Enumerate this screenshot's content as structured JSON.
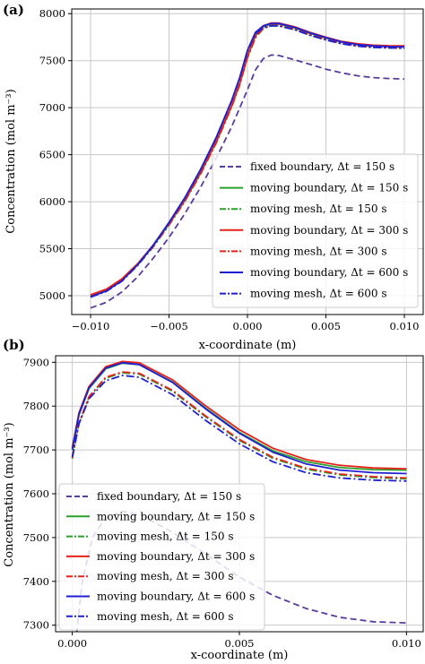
{
  "chart_data": [
    {
      "panel": "(a)",
      "type": "line",
      "xlabel": "x-coordinate (m)",
      "ylabel": "Concentration (mol m⁻³)",
      "xlim": [
        -0.0112,
        0.0112
      ],
      "ylim": [
        4800,
        8050
      ],
      "xticks": [
        -0.01,
        -0.005,
        0.0,
        0.005,
        0.01
      ],
      "xtick_labels": [
        "−0.010",
        "−0.005",
        "0.000",
        "0.005",
        "0.010"
      ],
      "yticks": [
        5000,
        5500,
        6000,
        6500,
        7000,
        7500,
        8000
      ],
      "ytick_labels": [
        "5000",
        "5500",
        "6000",
        "6500",
        "7000",
        "7500",
        "8000"
      ],
      "grid": true,
      "legend": "lower-right",
      "series": [
        {
          "name": "fixed boundary, Δt = 150 s",
          "color": "#5b3c9e",
          "style": "dashed",
          "x": [
            -0.01,
            -0.009,
            -0.008,
            -0.007,
            -0.006,
            -0.005,
            -0.004,
            -0.003,
            -0.002,
            -0.001,
            0.0,
            0.0005,
            0.001,
            0.0015,
            0.002,
            0.003,
            0.004,
            0.005,
            0.006,
            0.007,
            0.008,
            0.009,
            0.01
          ],
          "y": [
            4870,
            4930,
            5040,
            5200,
            5400,
            5620,
            5870,
            6150,
            6460,
            6800,
            7190,
            7400,
            7520,
            7560,
            7555,
            7510,
            7460,
            7410,
            7370,
            7340,
            7320,
            7310,
            7305
          ]
        },
        {
          "name": "moving boundary, Δt = 150 s",
          "color": "#2ca02c",
          "style": "solid",
          "x": [
            -0.01,
            -0.009,
            -0.008,
            -0.007,
            -0.006,
            -0.005,
            -0.004,
            -0.003,
            -0.002,
            -0.001,
            -0.0005,
            0.0,
            0.0005,
            0.001,
            0.0015,
            0.002,
            0.003,
            0.004,
            0.005,
            0.006,
            0.007,
            0.008,
            0.009,
            0.01
          ],
          "y": [
            5000,
            5060,
            5170,
            5330,
            5530,
            5760,
            6010,
            6300,
            6630,
            7020,
            7250,
            7540,
            7760,
            7860,
            7890,
            7890,
            7850,
            7790,
            7740,
            7700,
            7675,
            7662,
            7656,
            7655
          ]
        },
        {
          "name": "moving mesh, Δt = 150 s",
          "color": "#2ca02c",
          "style": "dashdot",
          "x": [
            -0.01,
            -0.009,
            -0.008,
            -0.007,
            -0.006,
            -0.005,
            -0.004,
            -0.003,
            -0.002,
            -0.001,
            -0.0005,
            0.0,
            0.0005,
            0.001,
            0.0015,
            0.002,
            0.003,
            0.004,
            0.005,
            0.006,
            0.007,
            0.008,
            0.009,
            0.01
          ],
          "y": [
            4990,
            5050,
            5160,
            5320,
            5520,
            5750,
            6000,
            6290,
            6620,
            7010,
            7240,
            7530,
            7740,
            7840,
            7870,
            7870,
            7830,
            7770,
            7720,
            7680,
            7655,
            7642,
            7636,
            7633
          ]
        },
        {
          "name": "moving boundary, Δt = 300 s",
          "color": "#e8221b",
          "style": "solid",
          "x": [
            -0.01,
            -0.009,
            -0.008,
            -0.007,
            -0.006,
            -0.005,
            -0.004,
            -0.003,
            -0.002,
            -0.001,
            -0.0005,
            0.0,
            0.0005,
            0.001,
            0.0015,
            0.002,
            0.003,
            0.004,
            0.005,
            0.006,
            0.007,
            0.008,
            0.009,
            0.01
          ],
          "y": [
            5010,
            5070,
            5180,
            5340,
            5540,
            5770,
            6020,
            6310,
            6640,
            7030,
            7260,
            7550,
            7770,
            7870,
            7900,
            7900,
            7860,
            7800,
            7750,
            7705,
            7680,
            7665,
            7659,
            7657
          ]
        },
        {
          "name": "moving mesh, Δt = 300 s",
          "color": "#e8221b",
          "style": "dashdot",
          "x": [
            -0.01,
            -0.009,
            -0.008,
            -0.007,
            -0.006,
            -0.005,
            -0.004,
            -0.003,
            -0.002,
            -0.001,
            -0.0005,
            0.0,
            0.0005,
            0.001,
            0.0015,
            0.002,
            0.003,
            0.004,
            0.005,
            0.006,
            0.007,
            0.008,
            0.009,
            0.01
          ],
          "y": [
            4995,
            5055,
            5165,
            5325,
            5525,
            5755,
            6005,
            6295,
            6625,
            7015,
            7245,
            7535,
            7745,
            7845,
            7875,
            7875,
            7835,
            7775,
            7725,
            7685,
            7660,
            7646,
            7640,
            7637
          ]
        },
        {
          "name": "moving boundary, Δt = 600 s",
          "color": "#1f1fd1",
          "style": "solid",
          "x": [
            -0.01,
            -0.009,
            -0.008,
            -0.007,
            -0.006,
            -0.005,
            -0.004,
            -0.003,
            -0.002,
            -0.001,
            -0.0005,
            0.0,
            0.0005,
            0.001,
            0.0015,
            0.002,
            0.003,
            0.004,
            0.005,
            0.006,
            0.007,
            0.008,
            0.009,
            0.01
          ],
          "y": [
            4990,
            5050,
            5160,
            5330,
            5540,
            5780,
            6040,
            6340,
            6680,
            7080,
            7320,
            7610,
            7800,
            7870,
            7895,
            7895,
            7855,
            7795,
            7745,
            7700,
            7672,
            7657,
            7650,
            7648
          ]
        },
        {
          "name": "moving mesh, Δt = 600 s",
          "color": "#1f1fd1",
          "style": "dashdot",
          "x": [
            -0.01,
            -0.009,
            -0.008,
            -0.007,
            -0.006,
            -0.005,
            -0.004,
            -0.003,
            -0.002,
            -0.001,
            -0.0005,
            0.0,
            0.0005,
            0.001,
            0.0015,
            0.002,
            0.003,
            0.004,
            0.005,
            0.006,
            0.007,
            0.008,
            0.009,
            0.01
          ],
          "y": [
            4985,
            5045,
            5155,
            5325,
            5535,
            5775,
            6035,
            6335,
            6675,
            7075,
            7315,
            7600,
            7785,
            7850,
            7870,
            7870,
            7830,
            7770,
            7720,
            7680,
            7655,
            7641,
            7635,
            7633
          ]
        }
      ]
    },
    {
      "panel": "(b)",
      "type": "line",
      "xlabel": "x-coordinate (m)",
      "ylabel": "Concentration (mol m⁻³)",
      "xlim": [
        -0.0005,
        0.0105
      ],
      "ylim": [
        7285,
        7915
      ],
      "xticks": [
        0.0,
        0.005,
        0.01
      ],
      "xtick_labels": [
        "0.000",
        "0.005",
        "0.010"
      ],
      "yticks": [
        7300,
        7400,
        7500,
        7600,
        7700,
        7800,
        7900
      ],
      "ytick_labels": [
        "7300",
        "7400",
        "7500",
        "7600",
        "7700",
        "7800",
        "7900"
      ],
      "grid": true,
      "legend": "lower-left",
      "series": [
        {
          "name": "fixed boundary, Δt = 150 s",
          "color": "#5b3c9e",
          "style": "dashed",
          "x": [
            0.0,
            0.0003,
            0.0006,
            0.001,
            0.0015,
            0.002,
            0.003,
            0.004,
            0.005,
            0.006,
            0.007,
            0.008,
            0.009,
            0.01
          ],
          "y": [
            7190,
            7400,
            7500,
            7545,
            7560,
            7553,
            7512,
            7462,
            7410,
            7368,
            7338,
            7318,
            7308,
            7305
          ]
        },
        {
          "name": "moving boundary, Δt = 150 s",
          "color": "#2ca02c",
          "style": "solid",
          "x": [
            0.0,
            0.0002,
            0.0005,
            0.001,
            0.0015,
            0.002,
            0.003,
            0.004,
            0.005,
            0.006,
            0.007,
            0.008,
            0.009,
            0.01
          ],
          "y": [
            7700,
            7780,
            7840,
            7885,
            7898,
            7895,
            7855,
            7795,
            7740,
            7698,
            7673,
            7660,
            7655,
            7654
          ]
        },
        {
          "name": "moving mesh, Δt = 150 s",
          "color": "#2ca02c",
          "style": "dashdot",
          "x": [
            0.0,
            0.0002,
            0.0005,
            0.001,
            0.0015,
            0.002,
            0.003,
            0.004,
            0.005,
            0.006,
            0.007,
            0.008,
            0.009,
            0.01
          ],
          "y": [
            7680,
            7760,
            7820,
            7864,
            7876,
            7873,
            7834,
            7775,
            7722,
            7681,
            7656,
            7643,
            7637,
            7634
          ]
        },
        {
          "name": "moving boundary, Δt = 300 s",
          "color": "#e8221b",
          "style": "solid",
          "x": [
            0.0,
            0.0002,
            0.0005,
            0.001,
            0.0015,
            0.002,
            0.003,
            0.004,
            0.005,
            0.006,
            0.007,
            0.008,
            0.009,
            0.01
          ],
          "y": [
            7705,
            7785,
            7845,
            7890,
            7902,
            7899,
            7860,
            7800,
            7746,
            7704,
            7678,
            7665,
            7659,
            7657
          ]
        },
        {
          "name": "moving mesh, Δt = 300 s",
          "color": "#e8221b",
          "style": "dashdot",
          "x": [
            0.0,
            0.0002,
            0.0005,
            0.001,
            0.0015,
            0.002,
            0.003,
            0.004,
            0.005,
            0.006,
            0.007,
            0.008,
            0.009,
            0.01
          ],
          "y": [
            7682,
            7762,
            7822,
            7866,
            7878,
            7875,
            7836,
            7777,
            7724,
            7683,
            7658,
            7645,
            7639,
            7636
          ]
        },
        {
          "name": "moving boundary, Δt = 600 s",
          "color": "#1f1fd1",
          "style": "solid",
          "x": [
            0.0,
            0.0002,
            0.0005,
            0.001,
            0.0015,
            0.002,
            0.003,
            0.004,
            0.005,
            0.006,
            0.007,
            0.008,
            0.009,
            0.01
          ],
          "y": [
            7702,
            7782,
            7842,
            7887,
            7899,
            7895,
            7854,
            7793,
            7738,
            7695,
            7668,
            7654,
            7648,
            7646
          ]
        },
        {
          "name": "moving mesh, Δt = 600 s",
          "color": "#1f1fd1",
          "style": "dashdot",
          "x": [
            0.0,
            0.0002,
            0.0005,
            0.001,
            0.0015,
            0.002,
            0.003,
            0.004,
            0.005,
            0.006,
            0.007,
            0.008,
            0.009,
            0.01
          ],
          "y": [
            7684,
            7760,
            7817,
            7858,
            7870,
            7866,
            7826,
            7767,
            7714,
            7673,
            7648,
            7636,
            7631,
            7629
          ]
        }
      ]
    }
  ]
}
